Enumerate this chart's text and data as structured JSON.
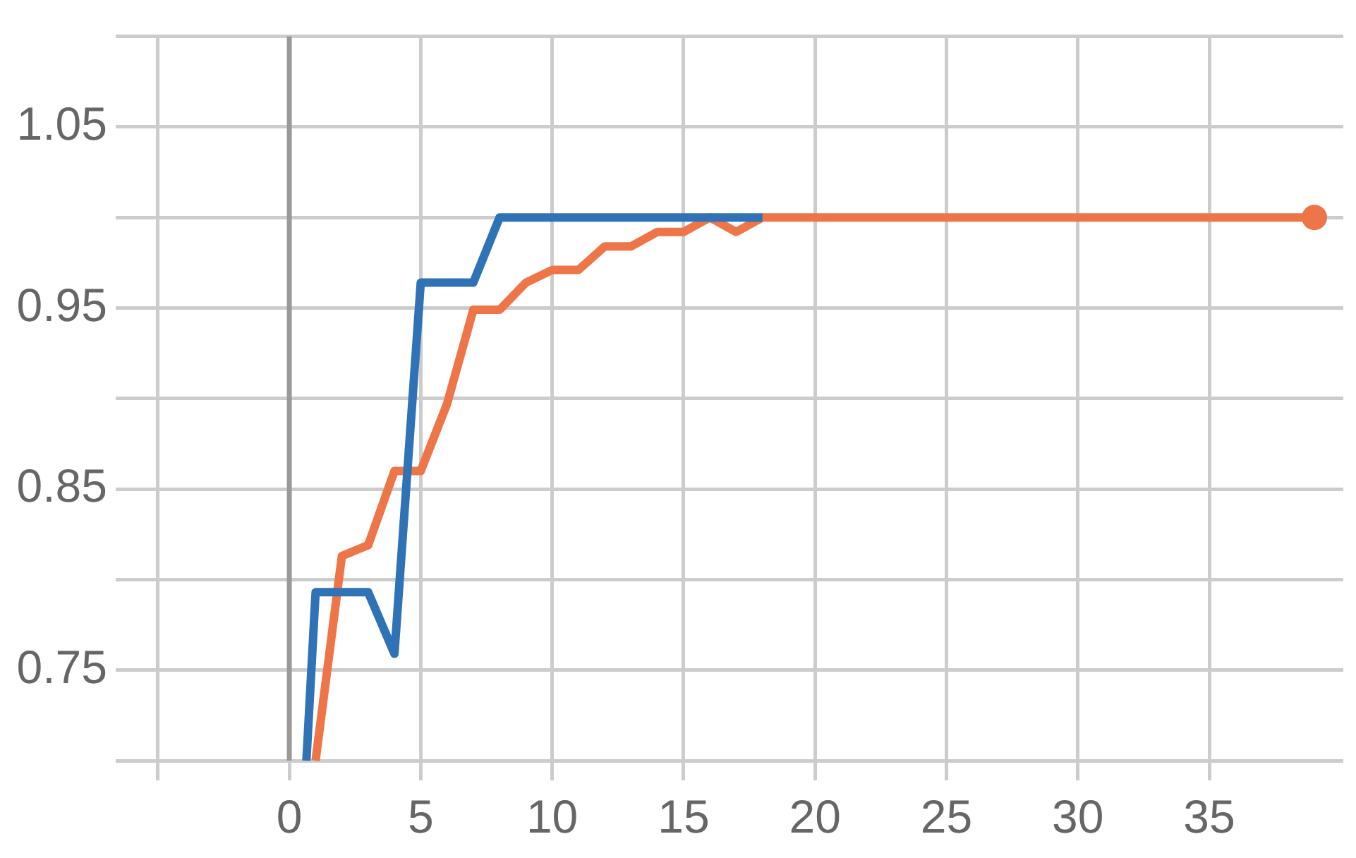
{
  "chart_data": {
    "type": "line",
    "series": [
      {
        "color": "#2f72b5",
        "x": [
          0.65,
          1,
          2,
          3,
          4,
          5,
          6,
          7,
          8,
          9,
          10,
          11,
          12,
          13,
          14,
          15,
          16,
          17,
          18
        ],
        "values": [
          0.7,
          0.793,
          0.793,
          0.793,
          0.759,
          0.964,
          0.964,
          0.964,
          1.0,
          1.0,
          1.0,
          1.0,
          1.0,
          1.0,
          1.0,
          1.0,
          1.0,
          1.0,
          1.0
        ]
      },
      {
        "color": "#ee7548",
        "x": [
          1,
          2,
          3,
          4,
          5,
          6,
          7,
          8,
          9,
          10,
          11,
          12,
          13,
          14,
          15,
          16,
          17,
          18,
          19,
          20,
          25,
          30,
          35,
          39
        ],
        "values": [
          0.7,
          0.813,
          0.819,
          0.86,
          0.86,
          0.897,
          0.949,
          0.949,
          0.964,
          0.971,
          0.971,
          0.984,
          0.984,
          0.992,
          0.992,
          1.0,
          0.992,
          1.0,
          1.0,
          1.0,
          1.0,
          1.0,
          1.0,
          1.0
        ]
      },
      {
        "type": "scatter",
        "color": "#ee7548",
        "marker": "circle",
        "x": [
          39
        ],
        "values": [
          1.0
        ]
      }
    ],
    "xlim": [
      -5.8,
      40.1
    ],
    "xticks": [
      {
        "value": -5,
        "label": null
      },
      0,
      5,
      10,
      15,
      20,
      25,
      30,
      35
    ],
    "ylim": [
      0.7,
      1.1
    ],
    "yticks": [
      {
        "value": 0.7,
        "label": null
      },
      0.75,
      {
        "value": 0.8,
        "label": null
      },
      0.85,
      {
        "value": 0.9,
        "label": null
      },
      0.95,
      {
        "value": 1.0,
        "label": null
      },
      1.05,
      {
        "value": 1.1,
        "label": null
      }
    ],
    "ref_lines": [
      {
        "axis": "x",
        "value": 0,
        "color": "#999999"
      }
    ],
    "grid": true,
    "legend": false
  }
}
